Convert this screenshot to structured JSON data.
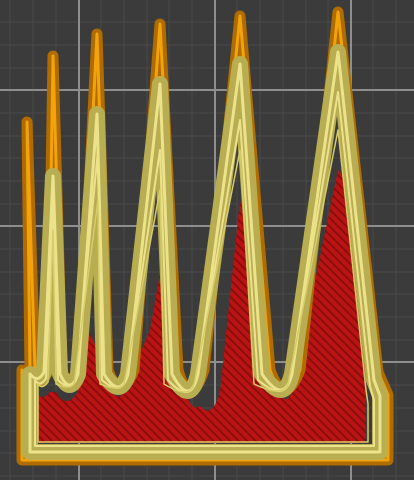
{
  "viewport": {
    "background_color": "#3b3b3b",
    "grid_minor_color": "#484848",
    "grid_major_color": "#8e8e8e"
  },
  "toolpaths": {
    "perimeter_outer_color": "#b06c00",
    "perimeter_edge_color": "#f2a20a",
    "perimeter_inner_color": "#b8ad50",
    "perimeter_inner_light_color": "#ece28c",
    "infill_color": "#b81414",
    "infill_hatch_color": "#8f0c0c",
    "spike_count": 6
  }
}
